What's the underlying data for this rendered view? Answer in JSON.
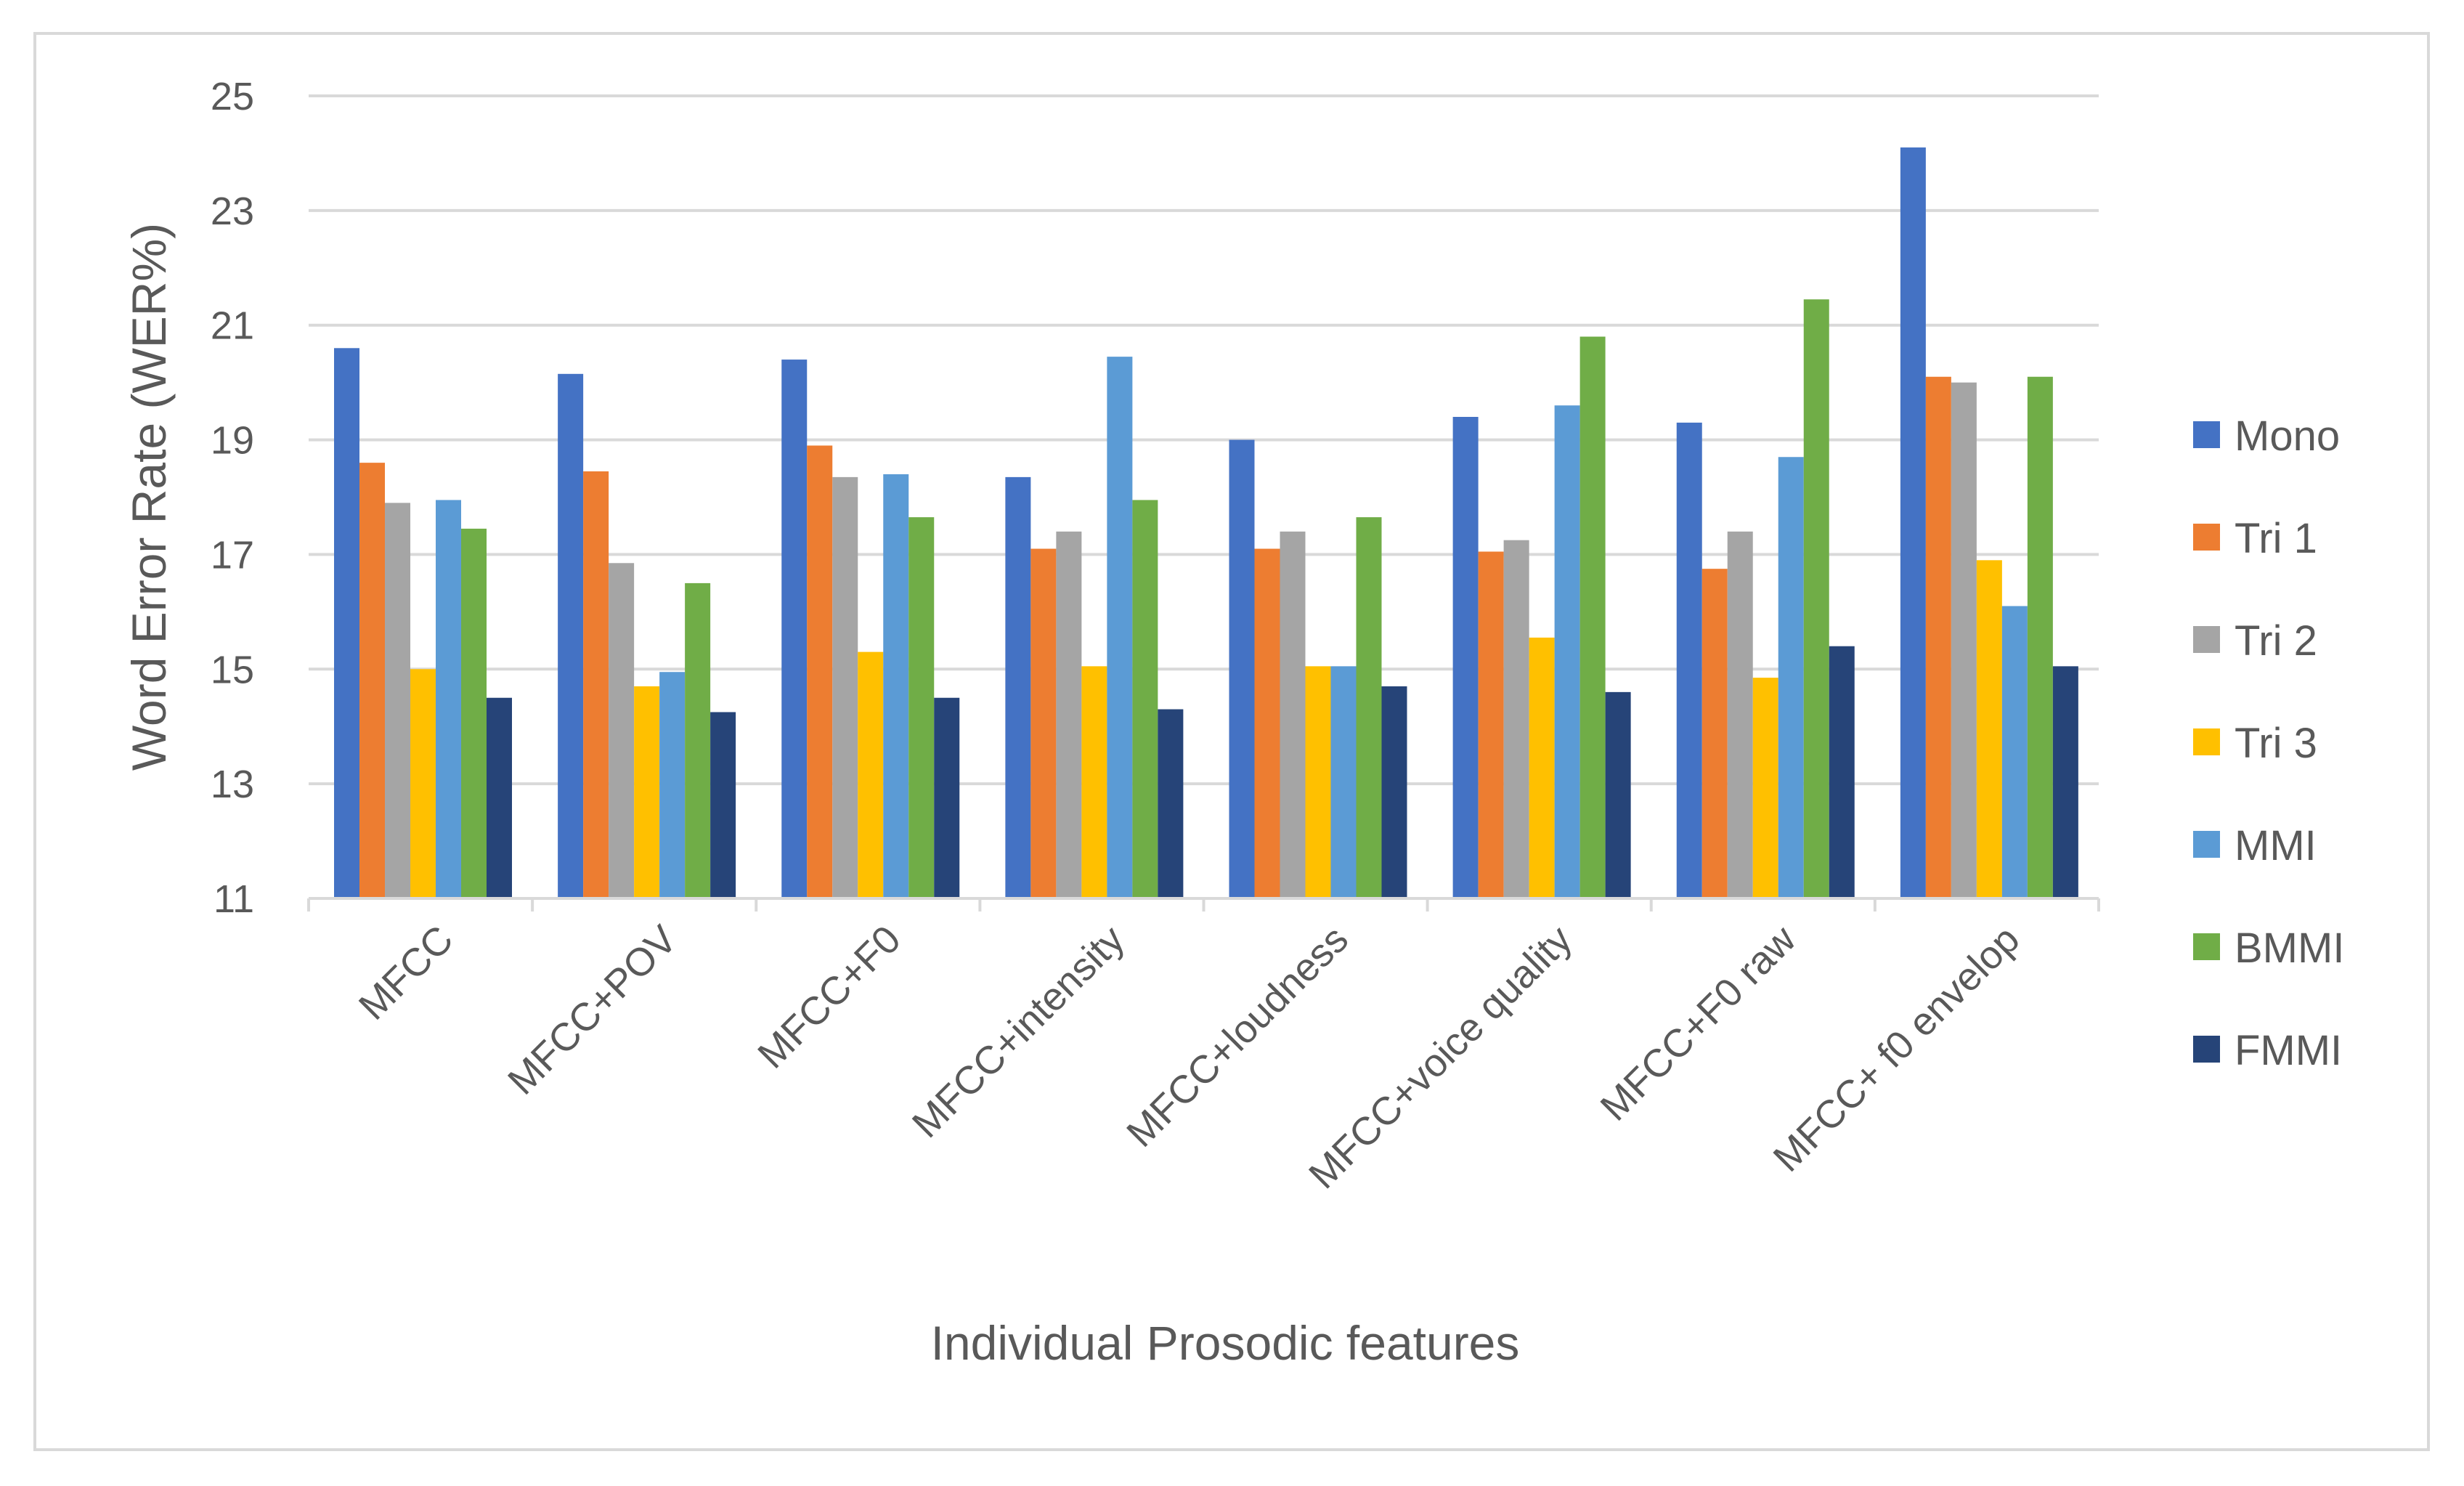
{
  "chart_data": {
    "type": "bar",
    "title": "",
    "xlabel": "Individual Prosodic features",
    "ylabel": "Word Error Rate (WER%)",
    "ylim": [
      11,
      25
    ],
    "yticks": [
      "11",
      "13",
      "15",
      "17",
      "19",
      "21",
      "23",
      "25"
    ],
    "grid": true,
    "legend_position": "right",
    "categories": [
      "MFCC",
      "MFCC+POV",
      "MFCC+F0",
      "MFCC+intensity",
      "MFCC+loudness",
      "MFCC+voice quality",
      "MFCC+F0 raw",
      "MFCC+ f0 envelop"
    ],
    "series": [
      {
        "name": "Mono",
        "color": "#4472C4",
        "values": [
          20.6,
          20.15,
          20.4,
          18.35,
          19.0,
          19.4,
          19.3,
          24.1
        ]
      },
      {
        "name": "Tri 1",
        "color": "#ED7D31",
        "values": [
          18.6,
          18.45,
          18.9,
          17.1,
          17.1,
          17.05,
          16.75,
          20.1
        ]
      },
      {
        "name": "Tri 2",
        "color": "#A5A5A5",
        "values": [
          17.9,
          16.85,
          18.35,
          17.4,
          17.4,
          17.25,
          17.4,
          20.0
        ]
      },
      {
        "name": "Tri 3",
        "color": "#FFC000",
        "values": [
          15.0,
          14.7,
          15.3,
          15.05,
          15.05,
          15.55,
          14.85,
          16.9
        ]
      },
      {
        "name": "MMI",
        "color": "#5B9BD5",
        "values": [
          17.95,
          14.95,
          18.4,
          20.45,
          15.05,
          19.6,
          18.7,
          16.1
        ]
      },
      {
        "name": "BMMI",
        "color": "#70AD47",
        "values": [
          17.45,
          16.5,
          17.65,
          17.95,
          17.65,
          20.8,
          21.45,
          20.1
        ]
      },
      {
        "name": "FMMI",
        "color": "#264478",
        "values": [
          14.5,
          14.25,
          14.5,
          14.3,
          14.7,
          14.6,
          15.4,
          15.05
        ]
      }
    ]
  }
}
